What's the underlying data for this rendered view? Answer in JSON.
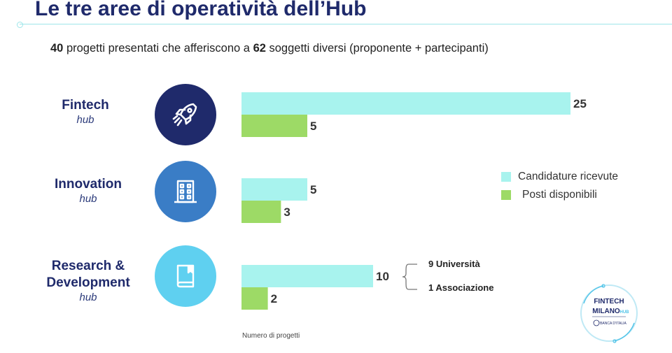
{
  "title": "Le tre aree di operatività dell’Hub",
  "subtitle": {
    "n_projects": "40",
    "part1": " progetti presentati che afferiscono a ",
    "n_subjects": "62",
    "part2": " soggetti diversi (proponente + partecipanti)"
  },
  "hubs": [
    {
      "name": "Fintech",
      "sub": "hub",
      "icon": "rocket-icon",
      "color": "#1f2a6b"
    },
    {
      "name": "Innovation",
      "sub": "hub",
      "icon": "building-icon",
      "color": "#3a7dc6"
    },
    {
      "name": "Research &",
      "name2": "Development",
      "sub": "hub",
      "icon": "book-icon",
      "color": "#5fd0f0"
    }
  ],
  "chart_data": {
    "type": "bar",
    "orientation": "horizontal",
    "categories": [
      "Fintech hub",
      "Innovation hub",
      "Research & Development hub"
    ],
    "series": [
      {
        "name": "Candidature ricevute",
        "values": [
          25,
          5,
          10
        ],
        "color": "#a8f3ee"
      },
      {
        "name": "Posti disponibili",
        "values": [
          5,
          3,
          2
        ],
        "color": "#9dda66"
      }
    ],
    "xlabel": "Numero di progetti",
    "legend_position": "right",
    "grid": false
  },
  "annotation": {
    "items": [
      "9 Università",
      "1 Associazione"
    ]
  },
  "logo": {
    "line1": "FINTECH",
    "line2": "MILANO",
    "line2b": "HUB",
    "line3": "BANCA D'ITALIA"
  }
}
